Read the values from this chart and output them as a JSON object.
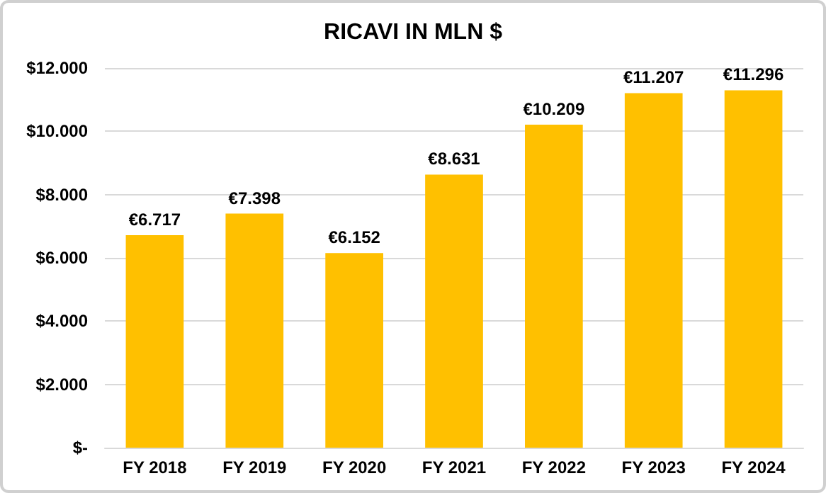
{
  "chart_data": {
    "type": "bar",
    "title": "RICAVI IN MLN $",
    "categories": [
      "FY 2018",
      "FY 2019",
      "FY 2020",
      "FY 2021",
      "FY 2022",
      "FY 2023",
      "FY 2024"
    ],
    "values": [
      6717,
      7398,
      6152,
      8631,
      10209,
      11207,
      11296
    ],
    "value_labels": [
      "€6.717",
      "€7.398",
      "€6.152",
      "€8.631",
      "€10.209",
      "€11.207",
      "€11.296"
    ],
    "color": "#ffc000",
    "ylim": [
      0,
      12000
    ],
    "yticks": [
      {
        "value": 0,
        "label": "$-"
      },
      {
        "value": 2000,
        "label": "$2.000"
      },
      {
        "value": 4000,
        "label": "$4.000"
      },
      {
        "value": 6000,
        "label": "$6.000"
      },
      {
        "value": 8000,
        "label": "$8.000"
      },
      {
        "value": 10000,
        "label": "$10.000"
      },
      {
        "value": 12000,
        "label": "$12.000"
      }
    ],
    "grid": "y"
  }
}
